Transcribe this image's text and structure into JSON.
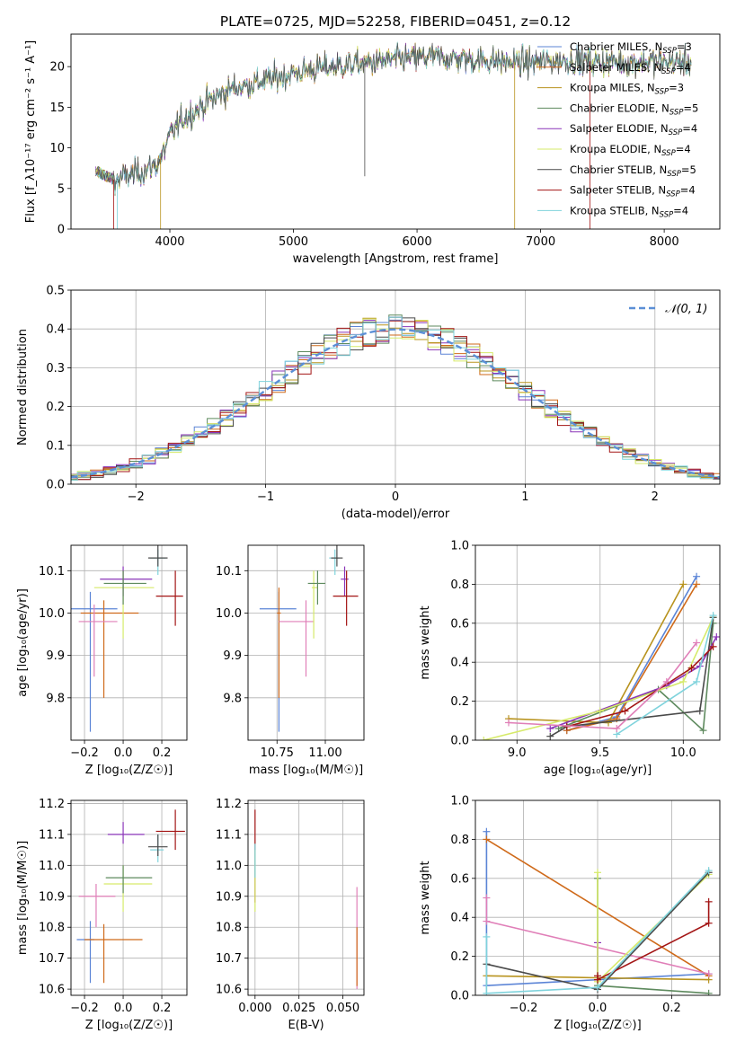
{
  "colors": {
    "chabrier_miles": "#5b84d6",
    "salpeter_miles": "#cf6a1a",
    "kroupa_miles": "#b8931e",
    "chabrier_elodie": "#5e8a5e",
    "salpeter_elodie": "#8a35b8",
    "kroupa_elodie": "#d6ea6a",
    "chabrier_stelib": "#4a4a4a",
    "salpeter_stelib": "#a31515",
    "kroupa_stelib": "#7fd3dc",
    "gauss": "#5b8fd6",
    "pink": "#e07fb8",
    "green": "#6fb84a",
    "grid": "#b0b0b0"
  },
  "chart_data": [
    {
      "id": "spectrum",
      "type": "line",
      "title": "PLATE=0725, MJD=52258, FIBERID=0451, z=0.12",
      "xlabel": "wavelength [Angstrom, rest frame]",
      "ylabel": "Flux [f_λ10⁻¹⁷ erg cm⁻² s⁻¹ A⁻¹]",
      "xlim": [
        3200,
        8450
      ],
      "ylim": [
        0,
        24
      ],
      "xticks": [
        "4000",
        "5000",
        "6000",
        "7000",
        "8000"
      ],
      "yticks": [
        "0",
        "5",
        "10",
        "15",
        "20"
      ],
      "grid": false,
      "legend_position": "upper-right",
      "continuum": {
        "x": [
          3400,
          3500,
          3560,
          3650,
          3800,
          3900,
          3950,
          4000,
          4100,
          4200,
          4300,
          4400,
          4500,
          4700,
          4900,
          5100,
          5300,
          5500,
          5700,
          5900,
          6100,
          6300,
          6500,
          6700,
          6900,
          7100,
          7300,
          7500,
          7700,
          7900,
          8100,
          8220
        ],
        "y": [
          7.2,
          6.4,
          6.0,
          6.5,
          7.2,
          8.0,
          9.5,
          11.5,
          13.5,
          14.5,
          15.6,
          16.5,
          17.3,
          18.0,
          18.8,
          19.5,
          20.0,
          20.3,
          20.6,
          21.0,
          21.2,
          21.0,
          20.8,
          20.6,
          20.5,
          20.7,
          20.7,
          20.6,
          20.5,
          20.6,
          20.6,
          20.5
        ]
      },
      "series": [
        {
          "name": "Chabrier MILES, N_SSP=3"
        },
        {
          "name": "Salpeter MILES, N_SSP=4"
        },
        {
          "name": "Kroupa MILES, N_SSP=3"
        },
        {
          "name": "Chabrier ELODIE, N_SSP=5"
        },
        {
          "name": "Salpeter ELODIE, N_SSP=4"
        },
        {
          "name": "Kroupa ELODIE, N_SSP=4"
        },
        {
          "name": "Chabrier STELIB, N_SSP=5"
        },
        {
          "name": "Salpeter STELIB, N_SSP=4"
        },
        {
          "name": "Kroupa STELIB, N_SSP=4"
        }
      ]
    },
    {
      "id": "residuals",
      "type": "histogram",
      "xlabel": "(data-model)/error",
      "ylabel": "Normed distribution",
      "xlim": [
        -2.5,
        2.5
      ],
      "ylim": [
        0,
        0.5
      ],
      "xticks": [
        "−2",
        "−1",
        "0",
        "1",
        "2"
      ],
      "yticks": [
        "0.0",
        "0.1",
        "0.2",
        "0.3",
        "0.4",
        "0.5"
      ],
      "grid": true,
      "legend": "𝒩(0, 1)",
      "legend_position": "upper-right",
      "bin_width": 0.1
    },
    {
      "id": "age_vs_Z",
      "type": "errorbar",
      "xlabel": "Z [log₁₀(Z/Z☉)]",
      "ylabel": "age  [log₁₀(age/yr)]",
      "xlim": [
        -0.27,
        0.33
      ],
      "ylim": [
        9.7,
        10.16
      ],
      "xticks": [
        "−0.2",
        "0.0",
        "0.2"
      ],
      "yticks": [
        "9.8",
        "9.9",
        "10.0",
        "10.1"
      ],
      "points": [
        {
          "x": -0.17,
          "xerr": [
            0.12,
            0.14
          ],
          "y": 10.01,
          "yerr": [
            0.29,
            0.04
          ],
          "c": "chabrier_miles"
        },
        {
          "x": -0.1,
          "xerr": [
            0.12,
            0.18
          ],
          "y": 10.0,
          "yerr": [
            0.2,
            0.03
          ],
          "c": "salpeter_miles"
        },
        {
          "x": -0.15,
          "xerr": [
            0.08,
            0.12
          ],
          "y": 9.98,
          "yerr": [
            0.13,
            0.04
          ],
          "c": "pink"
        },
        {
          "x": 0.0,
          "xerr": [
            0.15,
            0.16
          ],
          "y": 10.06,
          "yerr": [
            0.12,
            0.04
          ],
          "c": "kroupa_elodie"
        },
        {
          "x": 0.0,
          "xerr": [
            0.12,
            0.15
          ],
          "y": 10.08,
          "yerr": [
            0.04,
            0.03
          ],
          "c": "salpeter_elodie"
        },
        {
          "x": 0.0,
          "xerr": [
            0.1,
            0.12
          ],
          "y": 10.07,
          "yerr": [
            0.05,
            0.03
          ],
          "c": "chabrier_elodie"
        },
        {
          "x": 0.18,
          "xerr": [
            0.04,
            0.04
          ],
          "y": 10.13,
          "yerr": [
            0.04,
            0.02
          ],
          "c": "kroupa_stelib"
        },
        {
          "x": 0.18,
          "xerr": [
            0.05,
            0.05
          ],
          "y": 10.13,
          "yerr": [
            0.02,
            0.03
          ],
          "c": "chabrier_stelib"
        },
        {
          "x": 0.27,
          "xerr": [
            0.1,
            0.04
          ],
          "y": 10.04,
          "yerr": [
            0.07,
            0.06
          ],
          "c": "salpeter_stelib"
        }
      ]
    },
    {
      "id": "age_vs_mass",
      "type": "errorbar",
      "xlabel": "mass [log₁₀(M/M☉)]",
      "ylabel": "",
      "xlim": [
        10.6,
        11.2
      ],
      "ylim": [
        9.7,
        10.16
      ],
      "xticks": [
        "10.75",
        "11.00"
      ],
      "yticks": [
        "9.8",
        "9.9",
        "10.0",
        "10.1"
      ],
      "points": [
        {
          "x": 10.76,
          "xerr": [
            0.1,
            0.09
          ],
          "y": 10.01,
          "yerr": [
            0.29,
            0.04
          ],
          "c": "chabrier_miles"
        },
        {
          "x": 10.76,
          "xerr": [
            0.01,
            0.01
          ],
          "y": 10.0,
          "yerr": [
            0.2,
            0.06
          ],
          "c": "salpeter_miles"
        },
        {
          "x": 10.9,
          "xerr": [
            0.14,
            0.04
          ],
          "y": 9.98,
          "yerr": [
            0.13,
            0.05
          ],
          "c": "pink"
        },
        {
          "x": 10.94,
          "xerr": [
            0.01,
            0.02
          ],
          "y": 10.06,
          "yerr": [
            0.12,
            0.04
          ],
          "c": "kroupa_elodie"
        },
        {
          "x": 10.96,
          "xerr": [
            0.05,
            0.04
          ],
          "y": 10.07,
          "yerr": [
            0.05,
            0.03
          ],
          "c": "chabrier_elodie"
        },
        {
          "x": 11.05,
          "xerr": [
            0.03,
            0.02
          ],
          "y": 10.13,
          "yerr": [
            0.04,
            0.02
          ],
          "c": "kroupa_stelib"
        },
        {
          "x": 11.06,
          "xerr": [
            0.03,
            0.03
          ],
          "y": 10.13,
          "yerr": [
            0.02,
            0.03
          ],
          "c": "chabrier_stelib"
        },
        {
          "x": 11.1,
          "xerr": [
            0.02,
            0.02
          ],
          "y": 10.08,
          "yerr": [
            0.04,
            0.03
          ],
          "c": "salpeter_elodie"
        },
        {
          "x": 11.11,
          "xerr": [
            0.07,
            0.06
          ],
          "y": 10.04,
          "yerr": [
            0.07,
            0.06
          ],
          "c": "salpeter_stelib"
        }
      ]
    },
    {
      "id": "weight_vs_age",
      "type": "line",
      "xlabel": "age  [log₁₀(age/yr)]",
      "ylabel": "mass weight",
      "xlim": [
        8.75,
        10.22
      ],
      "ylim": [
        0,
        1
      ],
      "xticks": [
        "9.0",
        "9.5",
        "10.0"
      ],
      "yticks": [
        "0.0",
        "0.2",
        "0.4",
        "0.6",
        "0.8",
        "1.0"
      ],
      "grid": true,
      "series": [
        {
          "c": "chabrier_miles",
          "x": [
            9.3,
            9.6,
            10.08
          ],
          "y": [
            0.05,
            0.12,
            0.84
          ]
        },
        {
          "c": "salpeter_miles",
          "x": [
            9.3,
            9.6,
            10.08
          ],
          "y": [
            0.05,
            0.11,
            0.8
          ]
        },
        {
          "c": "kroupa_miles",
          "x": [
            8.95,
            9.55,
            10.0
          ],
          "y": [
            0.11,
            0.09,
            0.8
          ]
        },
        {
          "c": "chabrier_elodie",
          "x": [
            9.25,
            9.85,
            10.12,
            10.18
          ],
          "y": [
            0.06,
            0.26,
            0.05,
            0.6
          ]
        },
        {
          "c": "salpeter_elodie",
          "x": [
            9.2,
            9.9,
            10.1,
            10.2
          ],
          "y": [
            0.06,
            0.28,
            0.38,
            0.53
          ]
        },
        {
          "c": "kroupa_elodie",
          "x": [
            8.8,
            9.5,
            10.0,
            10.18
          ],
          "y": [
            0.0,
            0.15,
            0.3,
            0.63
          ]
        },
        {
          "c": "chabrier_stelib",
          "x": [
            9.2,
            9.3,
            10.1,
            10.18
          ],
          "y": [
            0.02,
            0.07,
            0.15,
            0.63
          ]
        },
        {
          "c": "salpeter_stelib",
          "x": [
            9.3,
            9.65,
            10.05,
            10.18
          ],
          "y": [
            0.07,
            0.15,
            0.37,
            0.48
          ]
        },
        {
          "c": "kroupa_stelib",
          "x": [
            9.6,
            10.08,
            10.18
          ],
          "y": [
            0.03,
            0.3,
            0.64
          ]
        },
        {
          "c": "pink",
          "x": [
            8.95,
            9.6,
            9.9,
            10.08
          ],
          "y": [
            0.09,
            0.06,
            0.3,
            0.5
          ]
        }
      ]
    },
    {
      "id": "mass_vs_Z",
      "type": "errorbar",
      "xlabel": "Z [log₁₀(Z/Z☉)]",
      "ylabel": "mass [log₁₀(M/M☉)]",
      "xlim": [
        -0.27,
        0.33
      ],
      "ylim": [
        10.58,
        11.21
      ],
      "xticks": [
        "−0.2",
        "0.0",
        "0.2"
      ],
      "yticks": [
        "10.6",
        "10.7",
        "10.8",
        "10.9",
        "11.0",
        "11.1",
        "11.2"
      ],
      "points": [
        {
          "x": -0.17,
          "xerr": [
            0.07,
            0.02
          ],
          "y": 10.76,
          "yerr": [
            0.14,
            0.06
          ],
          "c": "chabrier_miles"
        },
        {
          "x": -0.1,
          "xerr": [
            0.1,
            0.2
          ],
          "y": 10.76,
          "yerr": [
            0.14,
            0.05
          ],
          "c": "salpeter_miles"
        },
        {
          "x": -0.14,
          "xerr": [
            0.09,
            0.1
          ],
          "y": 10.9,
          "yerr": [
            0.1,
            0.04
          ],
          "c": "pink"
        },
        {
          "x": 0.0,
          "xerr": [
            0.1,
            0.15
          ],
          "y": 10.94,
          "yerr": [
            0.09,
            0.06
          ],
          "c": "kroupa_elodie"
        },
        {
          "x": 0.0,
          "xerr": [
            0.09,
            0.15
          ],
          "y": 10.96,
          "yerr": [
            0.05,
            0.04
          ],
          "c": "chabrier_elodie"
        },
        {
          "x": 0.0,
          "xerr": [
            0.08,
            0.11
          ],
          "y": 11.1,
          "yerr": [
            0.03,
            0.04
          ],
          "c": "salpeter_elodie"
        },
        {
          "x": 0.18,
          "xerr": [
            0.04,
            0.03
          ],
          "y": 11.05,
          "yerr": [
            0.04,
            0.05
          ],
          "c": "kroupa_stelib"
        },
        {
          "x": 0.18,
          "xerr": [
            0.05,
            0.05
          ],
          "y": 11.06,
          "yerr": [
            0.03,
            0.04
          ],
          "c": "chabrier_stelib"
        },
        {
          "x": 0.27,
          "xerr": [
            0.1,
            0.05
          ],
          "y": 11.11,
          "yerr": [
            0.06,
            0.07
          ],
          "c": "salpeter_stelib"
        }
      ]
    },
    {
      "id": "mass_vs_ebv",
      "type": "errorbar",
      "xlabel": "E(B-V)",
      "ylabel": "",
      "xlim": [
        -0.004,
        0.062
      ],
      "ylim": [
        10.58,
        11.21
      ],
      "xticks": [
        "0.000",
        "0.025",
        "0.050"
      ],
      "yticks": [
        "10.6",
        "10.7",
        "10.8",
        "10.9",
        "11.0",
        "11.1",
        "11.2"
      ],
      "points": [
        {
          "x": 0.0,
          "xerr": [
            0,
            0
          ],
          "y": 11.05,
          "yerr": [
            0.17,
            0.13
          ],
          "c": "salpeter_stelib"
        },
        {
          "x": 0.0,
          "xerr": [
            0,
            0
          ],
          "y": 11.0,
          "yerr": [
            0.15,
            0.05
          ],
          "c": "kroupa_elodie"
        },
        {
          "x": 0.0,
          "xerr": [
            0,
            0
          ],
          "y": 11.02,
          "yerr": [
            0.06,
            0.05
          ],
          "c": "kroupa_stelib"
        },
        {
          "x": 0.058,
          "xerr": [
            0,
            0
          ],
          "y": 10.8,
          "yerr": [
            0.2,
            0.13
          ],
          "c": "pink"
        },
        {
          "x": 0.058,
          "xerr": [
            0,
            0
          ],
          "y": 10.75,
          "yerr": [
            0.14,
            0.05
          ],
          "c": "salpeter_miles"
        }
      ]
    },
    {
      "id": "weight_vs_Z",
      "type": "line",
      "xlabel": "Z [log₁₀(Z/Z☉)]",
      "ylabel": "mass weight",
      "xlim": [
        -0.33,
        0.33
      ],
      "ylim": [
        0,
        1
      ],
      "xticks": [
        "−0.2",
        "0.0",
        "0.2"
      ],
      "yticks": [
        "0.0",
        "0.2",
        "0.4",
        "0.6",
        "0.8",
        "1.0"
      ],
      "grid": true,
      "series": [
        {
          "c": "chabrier_miles",
          "x": [
            -0.3,
            -0.3,
            0.3
          ],
          "y": [
            0.84,
            0.05,
            0.11
          ]
        },
        {
          "c": "salpeter_miles",
          "x": [
            -0.3,
            0.3
          ],
          "y": [
            0.8,
            0.1
          ]
        },
        {
          "c": "kroupa_miles",
          "x": [
            -0.3,
            0.0,
            0.3
          ],
          "y": [
            0.1,
            0.09,
            0.08
          ]
        },
        {
          "c": "pink",
          "x": [
            -0.3,
            -0.3,
            0.3
          ],
          "y": [
            0.5,
            0.38,
            0.11
          ]
        },
        {
          "c": "chabrier_elodie",
          "x": [
            0.0,
            0.0,
            0.3
          ],
          "y": [
            0.6,
            0.05,
            0.01
          ]
        },
        {
          "c": "salpeter_elodie",
          "x": [
            0.0,
            0.0
          ],
          "y": [
            0.27,
            0.08
          ]
        },
        {
          "c": "kroupa_elodie",
          "x": [
            0.0,
            0.0,
            0.3
          ],
          "y": [
            0.63,
            0.07,
            0.62
          ]
        },
        {
          "c": "chabrier_stelib",
          "x": [
            -0.3,
            0.0,
            0.3
          ],
          "y": [
            0.16,
            0.03,
            0.63
          ]
        },
        {
          "c": "salpeter_stelib",
          "x": [
            0.0,
            0.0,
            0.3,
            0.3
          ],
          "y": [
            0.1,
            0.08,
            0.37,
            0.48
          ]
        },
        {
          "c": "kroupa_stelib",
          "x": [
            -0.3,
            -0.3,
            0.0,
            0.3
          ],
          "y": [
            0.3,
            0.01,
            0.04,
            0.64
          ]
        }
      ]
    }
  ]
}
